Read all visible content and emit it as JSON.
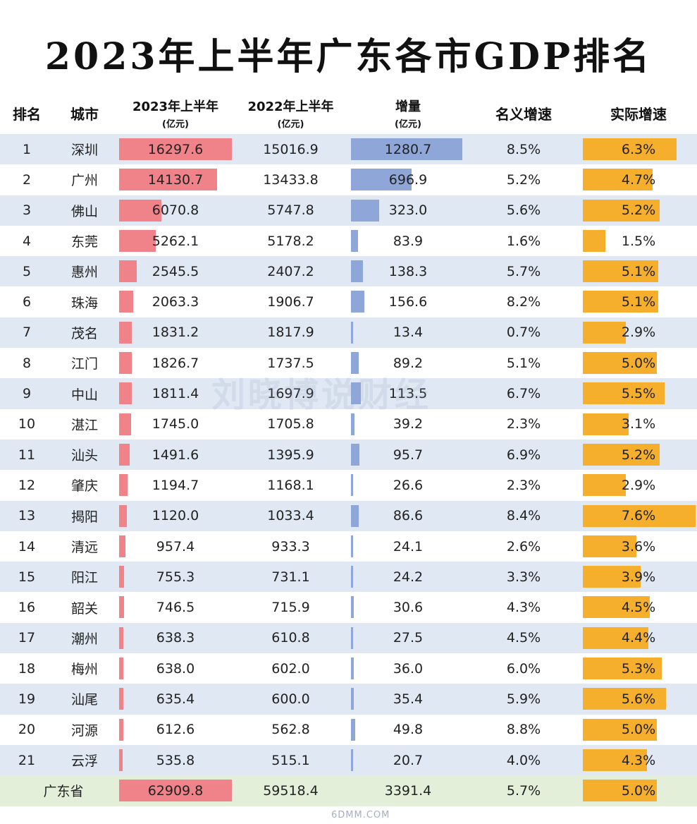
{
  "title": "2023年上半年广东各市GDP排名",
  "headers": {
    "rank": "排名",
    "city": "城市",
    "h2023": "2023年上半年",
    "h2023_unit": "(亿元)",
    "h2022": "2022年上半年",
    "h2022_unit": "(亿元)",
    "increase": "增量",
    "increase_unit": "(亿元)",
    "nominal": "名义增速",
    "real": "实际增速"
  },
  "watermark": "刘晓博说财经",
  "watermark2": "6DMM.COM",
  "colors": {
    "gdp2023_bar": "#f0838a",
    "increase_bar": "#8fa6d8",
    "real_growth_bar": "#f6ae2d",
    "row_alt": "#dfe8f3",
    "total_row": "#e4efd9"
  },
  "chart_data": {
    "type": "table",
    "columns": [
      "排名",
      "城市",
      "2023年上半年(亿元)",
      "2022年上半年(亿元)",
      "增量(亿元)",
      "名义增速",
      "实际增速"
    ],
    "rows": [
      {
        "rank": "1",
        "city": "深圳",
        "gdp2023": "16297.6",
        "gdp2022": "15016.9",
        "increase": "1280.7",
        "nominal": "8.5%",
        "real": "6.3%"
      },
      {
        "rank": "2",
        "city": "广州",
        "gdp2023": "14130.7",
        "gdp2022": "13433.8",
        "increase": "696.9",
        "nominal": "5.2%",
        "real": "4.7%"
      },
      {
        "rank": "3",
        "city": "佛山",
        "gdp2023": "6070.8",
        "gdp2022": "5747.8",
        "increase": "323.0",
        "nominal": "5.6%",
        "real": "5.2%"
      },
      {
        "rank": "4",
        "city": "东莞",
        "gdp2023": "5262.1",
        "gdp2022": "5178.2",
        "increase": "83.9",
        "nominal": "1.6%",
        "real": "1.5%"
      },
      {
        "rank": "5",
        "city": "惠州",
        "gdp2023": "2545.5",
        "gdp2022": "2407.2",
        "increase": "138.3",
        "nominal": "5.7%",
        "real": "5.1%"
      },
      {
        "rank": "6",
        "city": "珠海",
        "gdp2023": "2063.3",
        "gdp2022": "1906.7",
        "increase": "156.6",
        "nominal": "8.2%",
        "real": "5.1%"
      },
      {
        "rank": "7",
        "city": "茂名",
        "gdp2023": "1831.2",
        "gdp2022": "1817.9",
        "increase": "13.4",
        "nominal": "0.7%",
        "real": "2.9%"
      },
      {
        "rank": "8",
        "city": "江门",
        "gdp2023": "1826.7",
        "gdp2022": "1737.5",
        "increase": "89.2",
        "nominal": "5.1%",
        "real": "5.0%"
      },
      {
        "rank": "9",
        "city": "中山",
        "gdp2023": "1811.4",
        "gdp2022": "1697.9",
        "increase": "113.5",
        "nominal": "6.7%",
        "real": "5.5%"
      },
      {
        "rank": "10",
        "city": "湛江",
        "gdp2023": "1745.0",
        "gdp2022": "1705.8",
        "increase": "39.2",
        "nominal": "2.3%",
        "real": "3.1%"
      },
      {
        "rank": "11",
        "city": "汕头",
        "gdp2023": "1491.6",
        "gdp2022": "1395.9",
        "increase": "95.7",
        "nominal": "6.9%",
        "real": "5.2%"
      },
      {
        "rank": "12",
        "city": "肇庆",
        "gdp2023": "1194.7",
        "gdp2022": "1168.1",
        "increase": "26.6",
        "nominal": "2.3%",
        "real": "2.9%"
      },
      {
        "rank": "13",
        "city": "揭阳",
        "gdp2023": "1120.0",
        "gdp2022": "1033.4",
        "increase": "86.6",
        "nominal": "8.4%",
        "real": "7.6%"
      },
      {
        "rank": "14",
        "city": "清远",
        "gdp2023": "957.4",
        "gdp2022": "933.3",
        "increase": "24.1",
        "nominal": "2.6%",
        "real": "3.6%"
      },
      {
        "rank": "15",
        "city": "阳江",
        "gdp2023": "755.3",
        "gdp2022": "731.1",
        "increase": "24.2",
        "nominal": "3.3%",
        "real": "3.9%"
      },
      {
        "rank": "16",
        "city": "韶关",
        "gdp2023": "746.5",
        "gdp2022": "715.9",
        "increase": "30.6",
        "nominal": "4.3%",
        "real": "4.5%"
      },
      {
        "rank": "17",
        "city": "潮州",
        "gdp2023": "638.3",
        "gdp2022": "610.8",
        "increase": "27.5",
        "nominal": "4.5%",
        "real": "4.4%"
      },
      {
        "rank": "18",
        "city": "梅州",
        "gdp2023": "638.0",
        "gdp2022": "602.0",
        "increase": "36.0",
        "nominal": "6.0%",
        "real": "5.3%"
      },
      {
        "rank": "19",
        "city": "汕尾",
        "gdp2023": "635.4",
        "gdp2022": "600.0",
        "increase": "35.4",
        "nominal": "5.9%",
        "real": "5.6%"
      },
      {
        "rank": "20",
        "city": "河源",
        "gdp2023": "612.6",
        "gdp2022": "562.8",
        "increase": "49.8",
        "nominal": "8.8%",
        "real": "5.0%"
      },
      {
        "rank": "21",
        "city": "云浮",
        "gdp2023": "535.8",
        "gdp2022": "515.1",
        "increase": "20.7",
        "nominal": "4.0%",
        "real": "4.3%"
      }
    ],
    "total": {
      "label": "广东省",
      "gdp2023": "62909.8",
      "gdp2022": "59518.4",
      "increase": "3391.4",
      "nominal": "5.7%",
      "real": "5.0%"
    }
  }
}
